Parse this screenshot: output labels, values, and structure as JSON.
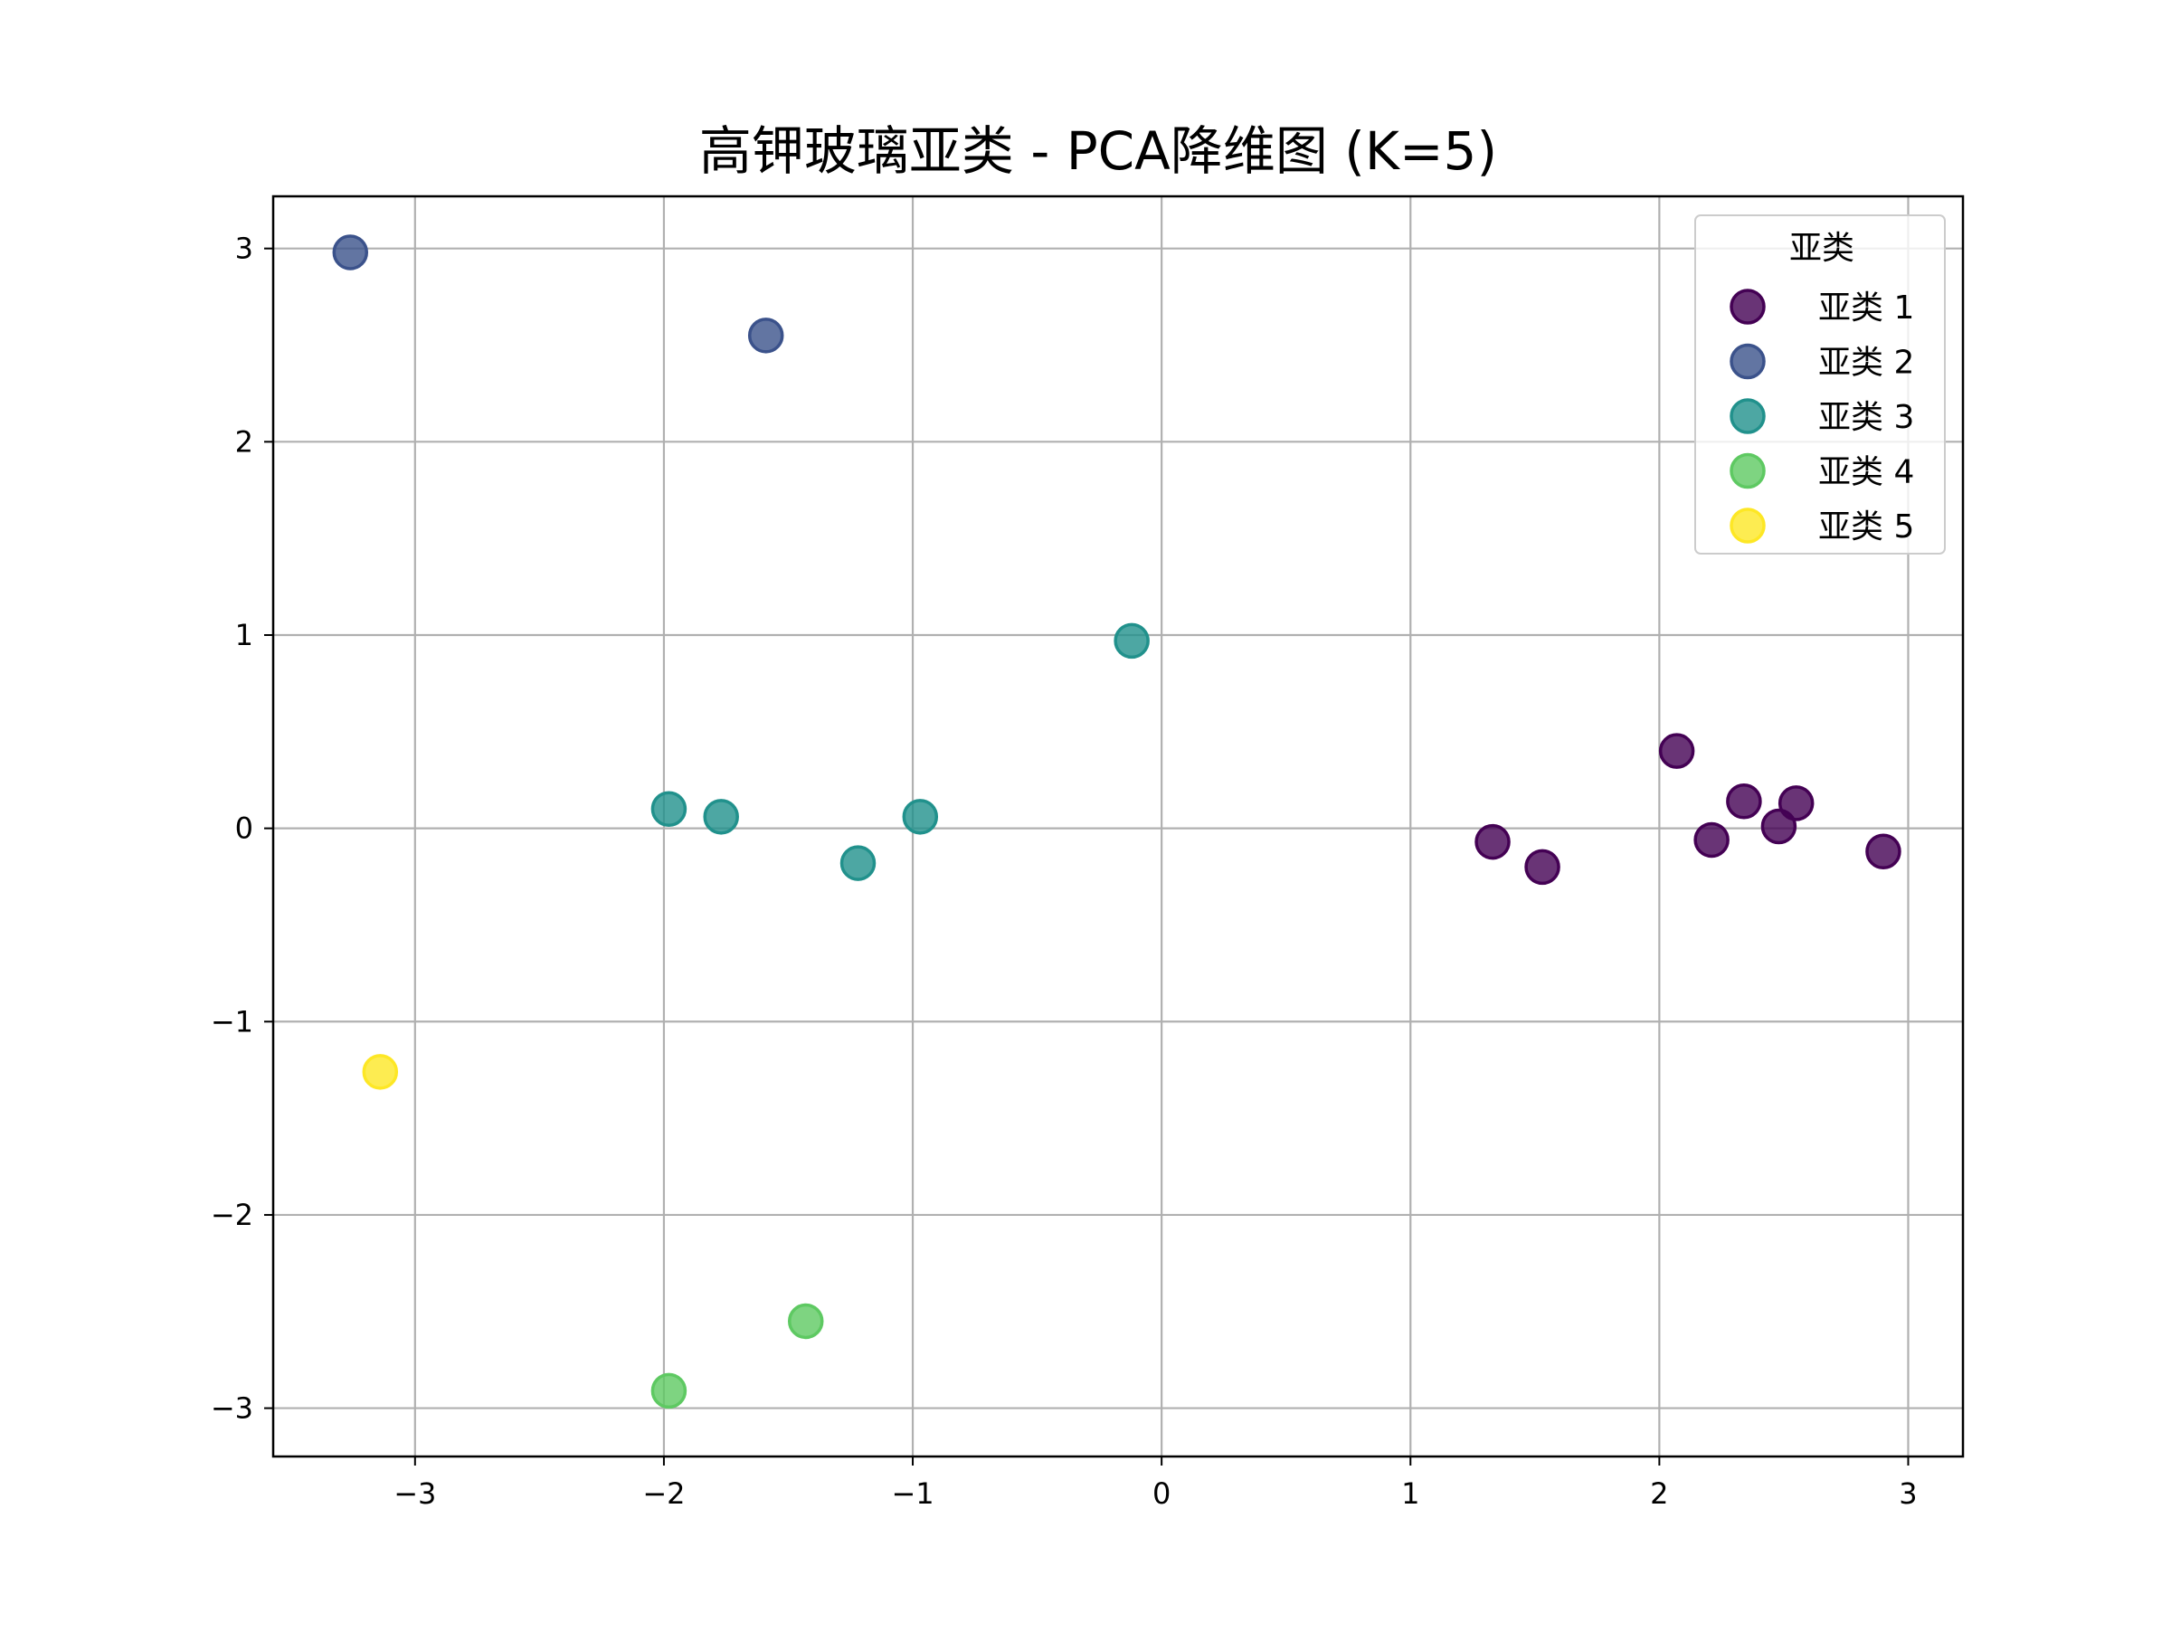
{
  "chart_data": {
    "type": "scatter",
    "title": "高钾玻璃亚类 - PCA降维图 (K=5)",
    "xlabel": "",
    "ylabel": "",
    "xlim": [
      -3.57,
      3.22
    ],
    "ylim": [
      -3.25,
      3.27
    ],
    "xticks": [
      -3,
      -2,
      -1,
      0,
      1,
      2,
      3
    ],
    "yticks": [
      -3,
      -2,
      -1,
      0,
      1,
      2,
      3
    ],
    "xtick_labels": [
      "−3",
      "−2",
      "−1",
      "0",
      "1",
      "2",
      "3"
    ],
    "ytick_labels": [
      "−3",
      "−2",
      "−1",
      "0",
      "1",
      "2",
      "3"
    ],
    "grid": true,
    "legend": {
      "title": "亚类",
      "placement": "upper-right"
    },
    "series": [
      {
        "name": "亚类 1",
        "color": "#440154",
        "points": [
          [
            1.33,
            -0.07
          ],
          [
            1.53,
            -0.2
          ],
          [
            2.07,
            0.4
          ],
          [
            2.21,
            -0.06
          ],
          [
            2.34,
            0.14
          ],
          [
            2.48,
            0.01
          ],
          [
            2.55,
            0.13
          ],
          [
            2.9,
            -0.12
          ]
        ]
      },
      {
        "name": "亚类 2",
        "color": "#3b528b",
        "points": [
          [
            -3.26,
            2.98
          ],
          [
            -1.59,
            2.55
          ]
        ]
      },
      {
        "name": "亚类 3",
        "color": "#21918c",
        "points": [
          [
            -1.98,
            0.1
          ],
          [
            -1.77,
            0.06
          ],
          [
            -1.22,
            -0.18
          ],
          [
            -0.97,
            0.06
          ],
          [
            -0.12,
            0.97
          ]
        ]
      },
      {
        "name": "亚类 4",
        "color": "#5ec962",
        "points": [
          [
            -1.43,
            -2.55
          ],
          [
            -1.98,
            -2.91
          ]
        ]
      },
      {
        "name": "亚类 5",
        "color": "#fde725",
        "points": [
          [
            -3.14,
            -1.26
          ]
        ]
      }
    ]
  }
}
